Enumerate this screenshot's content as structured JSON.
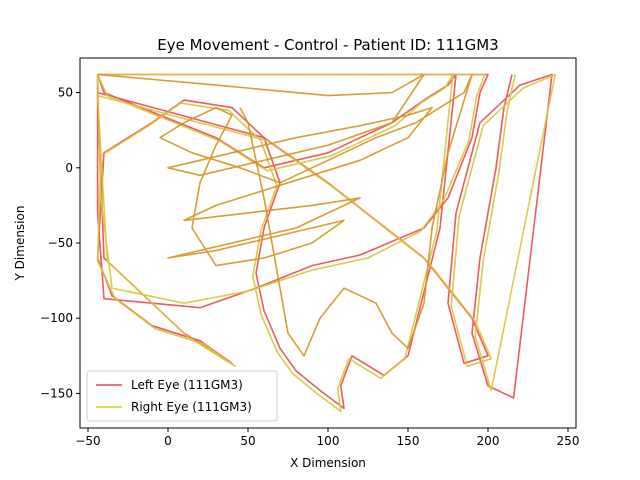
{
  "chart_data": {
    "type": "line",
    "title": "Eye Movement - Control - Patient ID: 111GM3",
    "xlabel": "X Dimension",
    "ylabel": "Y Dimension",
    "xlim": [
      -55,
      255
    ],
    "ylim": [
      -173,
      73
    ],
    "xticks": [
      -50,
      0,
      50,
      100,
      150,
      200,
      250
    ],
    "yticks": [
      -150,
      -100,
      -50,
      0,
      50
    ],
    "grid": false,
    "legend_position": "lower-left",
    "series": [
      {
        "name": "Left Eye (111GM3)",
        "color": "#f0474c",
        "points": [
          [
            -44,
            62
          ],
          [
            -44,
            -30
          ],
          [
            -40,
            -87
          ],
          [
            20,
            -93
          ],
          [
            55,
            -80
          ],
          [
            90,
            -65
          ],
          [
            120,
            -58
          ],
          [
            160,
            -40
          ],
          [
            175,
            -20
          ],
          [
            190,
            20
          ],
          [
            195,
            50
          ],
          [
            200,
            62
          ],
          [
            -44,
            62
          ],
          [
            -40,
            50
          ],
          [
            30,
            20
          ],
          [
            60,
            0
          ],
          [
            100,
            10
          ],
          [
            140,
            30
          ],
          [
            160,
            45
          ],
          [
            175,
            55
          ],
          [
            180,
            62
          ],
          [
            170,
            -40
          ],
          [
            150,
            -125
          ],
          [
            135,
            -138
          ],
          [
            115,
            -125
          ],
          [
            108,
            -145
          ],
          [
            110,
            -160
          ],
          [
            95,
            -148
          ],
          [
            80,
            -135
          ],
          [
            70,
            -120
          ],
          [
            60,
            -95
          ],
          [
            55,
            -70
          ],
          [
            60,
            -40
          ],
          [
            70,
            -10
          ],
          [
            60,
            20
          ],
          [
            40,
            40
          ],
          [
            10,
            45
          ],
          [
            -10,
            30
          ],
          [
            -40,
            10
          ],
          [
            -44,
            -60
          ],
          [
            -35,
            -85
          ],
          [
            -10,
            -105
          ],
          [
            20,
            -115
          ],
          [
            40,
            -130
          ],
          [
            10,
            -110
          ],
          [
            -40,
            -60
          ],
          [
            -44,
            50
          ],
          [
            60,
            20
          ],
          [
            100,
            -10
          ],
          [
            160,
            -60
          ],
          [
            190,
            -100
          ],
          [
            200,
            -125
          ],
          [
            185,
            -130
          ],
          [
            175,
            -90
          ],
          [
            180,
            -30
          ],
          [
            195,
            30
          ],
          [
            220,
            55
          ],
          [
            240,
            62
          ],
          [
            216,
            -153
          ],
          [
            200,
            -145
          ],
          [
            190,
            -110
          ],
          [
            195,
            -60
          ],
          [
            205,
            0
          ],
          [
            210,
            40
          ],
          [
            215,
            62
          ]
        ]
      },
      {
        "name": "Right Eye (111GM3)",
        "color": "#d4c73a",
        "points": [
          [
            -44,
            62
          ],
          [
            -42,
            -20
          ],
          [
            -35,
            -80
          ],
          [
            10,
            -90
          ],
          [
            50,
            -82
          ],
          [
            90,
            -68
          ],
          [
            125,
            -60
          ],
          [
            158,
            -42
          ],
          [
            172,
            -22
          ],
          [
            188,
            18
          ],
          [
            193,
            48
          ],
          [
            198,
            62
          ],
          [
            -44,
            62
          ],
          [
            -38,
            48
          ],
          [
            32,
            18
          ],
          [
            62,
            -2
          ],
          [
            102,
            8
          ],
          [
            142,
            28
          ],
          [
            158,
            43
          ],
          [
            173,
            53
          ],
          [
            178,
            62
          ],
          [
            168,
            -42
          ],
          [
            148,
            -127
          ],
          [
            133,
            -140
          ],
          [
            113,
            -127
          ],
          [
            106,
            -147
          ],
          [
            108,
            -162
          ],
          [
            93,
            -150
          ],
          [
            78,
            -137
          ],
          [
            68,
            -122
          ],
          [
            58,
            -97
          ],
          [
            53,
            -72
          ],
          [
            58,
            -42
          ],
          [
            68,
            -12
          ],
          [
            58,
            18
          ],
          [
            38,
            38
          ],
          [
            8,
            43
          ],
          [
            -12,
            28
          ],
          [
            -42,
            8
          ],
          [
            -44,
            -62
          ],
          [
            -33,
            -87
          ],
          [
            -8,
            -107
          ],
          [
            22,
            -117
          ],
          [
            42,
            -132
          ],
          [
            12,
            -112
          ],
          [
            -38,
            -62
          ],
          [
            -44,
            48
          ],
          [
            62,
            18
          ],
          [
            102,
            -12
          ],
          [
            162,
            -62
          ],
          [
            192,
            -102
          ],
          [
            202,
            -127
          ],
          [
            187,
            -132
          ],
          [
            177,
            -92
          ],
          [
            182,
            -32
          ],
          [
            197,
            28
          ],
          [
            222,
            53
          ],
          [
            242,
            62
          ],
          [
            202,
            -148
          ],
          [
            192,
            -112
          ],
          [
            197,
            -62
          ],
          [
            207,
            -2
          ],
          [
            212,
            38
          ],
          [
            217,
            62
          ]
        ]
      },
      {
        "name": "",
        "color": "#d4921f",
        "points": [
          [
            -44,
            62
          ],
          [
            30,
            55
          ],
          [
            100,
            48
          ],
          [
            140,
            50
          ],
          [
            160,
            62
          ],
          [
            140,
            30
          ],
          [
            100,
            15
          ],
          [
            60,
            5
          ],
          [
            20,
            -5
          ],
          [
            0,
            0
          ],
          [
            40,
            10
          ],
          [
            80,
            20
          ],
          [
            120,
            28
          ],
          [
            150,
            35
          ],
          [
            165,
            40
          ],
          [
            150,
            20
          ],
          [
            120,
            5
          ],
          [
            90,
            -5
          ],
          [
            60,
            -15
          ],
          [
            30,
            -25
          ],
          [
            10,
            -35
          ],
          [
            50,
            -30
          ],
          [
            90,
            -25
          ],
          [
            120,
            -20
          ],
          [
            80,
            -40
          ],
          [
            40,
            -50
          ],
          [
            0,
            -60
          ],
          [
            30,
            -55
          ],
          [
            70,
            -45
          ],
          [
            110,
            -35
          ],
          [
            90,
            -50
          ],
          [
            60,
            -60
          ],
          [
            30,
            -65
          ],
          [
            15,
            -40
          ],
          [
            20,
            -10
          ],
          [
            30,
            15
          ],
          [
            40,
            35
          ],
          [
            30,
            40
          ],
          [
            10,
            30
          ],
          [
            -5,
            20
          ],
          [
            15,
            10
          ],
          [
            45,
            0
          ],
          [
            70,
            -10
          ],
          [
            90,
            0
          ],
          [
            110,
            10
          ],
          [
            130,
            20
          ],
          [
            155,
            30
          ],
          [
            170,
            40
          ],
          [
            185,
            50
          ],
          [
            190,
            62
          ],
          [
            175,
            10
          ],
          [
            165,
            -40
          ],
          [
            160,
            -90
          ],
          [
            150,
            -120
          ],
          [
            140,
            -110
          ],
          [
            130,
            -90
          ],
          [
            110,
            -80
          ],
          [
            95,
            -100
          ],
          [
            85,
            -125
          ],
          [
            75,
            -110
          ],
          [
            70,
            -80
          ],
          [
            65,
            -50
          ],
          [
            60,
            -20
          ],
          [
            55,
            5
          ],
          [
            50,
            30
          ],
          [
            45,
            40
          ]
        ]
      }
    ]
  }
}
